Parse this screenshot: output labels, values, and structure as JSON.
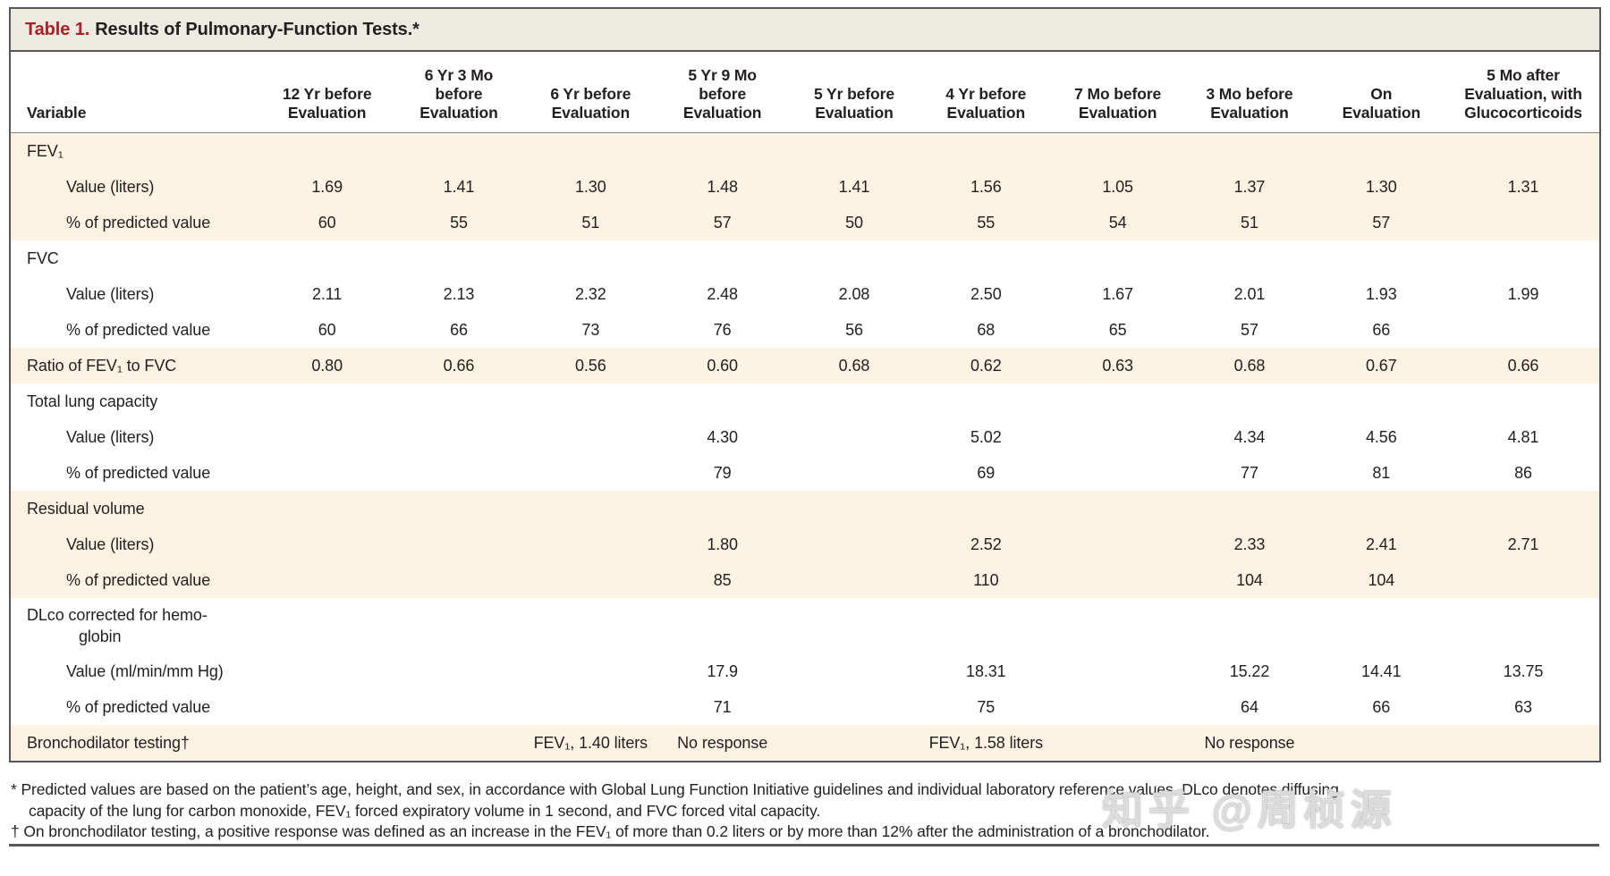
{
  "colors": {
    "title_red": "#b01e23",
    "title_bar_bg": "#edeae2",
    "stripe_cream": "#fcf3e2",
    "border_gray": "#57575b",
    "text": "#231f20"
  },
  "table": {
    "title_label": "Table 1.",
    "title_text": "Results of Pulmonary-Function Tests.*",
    "columns": [
      "Variable",
      "12 Yr before\nEvaluation",
      "6 Yr 3 Mo\nbefore\nEvaluation",
      "6 Yr before\nEvaluation",
      "5 Yr 9 Mo\nbefore\nEvaluation",
      "5 Yr before\nEvaluation",
      "4 Yr before\nEvaluation",
      "7 Mo before\nEvaluation",
      "3 Mo before\nEvaluation",
      "On\nEvaluation",
      "5 Mo after\nEvaluation, with\nGlucocorticoids"
    ],
    "rows": [
      {
        "type": "section",
        "stripe": true,
        "label": "FEV₁",
        "cells": [
          "",
          "",
          "",
          "",
          "",
          "",
          "",
          "",
          "",
          ""
        ]
      },
      {
        "type": "sub",
        "stripe": true,
        "label": "Value (liters)",
        "cells": [
          "1.69",
          "1.41",
          "1.30",
          "1.48",
          "1.41",
          "1.56",
          "1.05",
          "1.37",
          "1.30",
          "1.31"
        ]
      },
      {
        "type": "sub",
        "stripe": true,
        "label": "% of predicted value",
        "cells": [
          "60",
          "55",
          "51",
          "57",
          "50",
          "55",
          "54",
          "51",
          "57",
          ""
        ]
      },
      {
        "type": "section",
        "stripe": false,
        "label": "FVC",
        "cells": [
          "",
          "",
          "",
          "",
          "",
          "",
          "",
          "",
          "",
          ""
        ]
      },
      {
        "type": "sub",
        "stripe": false,
        "label": "Value (liters)",
        "cells": [
          "2.11",
          "2.13",
          "2.32",
          "2.48",
          "2.08",
          "2.50",
          "1.67",
          "2.01",
          "1.93",
          "1.99"
        ]
      },
      {
        "type": "sub",
        "stripe": false,
        "label": "% of predicted value",
        "cells": [
          "60",
          "66",
          "73",
          "76",
          "56",
          "68",
          "65",
          "57",
          "66",
          ""
        ]
      },
      {
        "type": "section-data",
        "stripe": true,
        "label": "Ratio of FEV₁ to FVC",
        "cells": [
          "0.80",
          "0.66",
          "0.56",
          "0.60",
          "0.68",
          "0.62",
          "0.63",
          "0.68",
          "0.67",
          "0.66"
        ]
      },
      {
        "type": "section",
        "stripe": false,
        "label": "Total lung capacity",
        "cells": [
          "",
          "",
          "",
          "",
          "",
          "",
          "",
          "",
          "",
          ""
        ]
      },
      {
        "type": "sub",
        "stripe": false,
        "label": "Value (liters)",
        "cells": [
          "",
          "",
          "",
          "4.30",
          "",
          "5.02",
          "",
          "4.34",
          "4.56",
          "4.81"
        ]
      },
      {
        "type": "sub",
        "stripe": false,
        "label": "% of predicted value",
        "cells": [
          "",
          "",
          "",
          "79",
          "",
          "69",
          "",
          "77",
          "81",
          "86"
        ]
      },
      {
        "type": "section",
        "stripe": true,
        "label": "Residual volume",
        "cells": [
          "",
          "",
          "",
          "",
          "",
          "",
          "",
          "",
          "",
          ""
        ]
      },
      {
        "type": "sub",
        "stripe": true,
        "label": "Value (liters)",
        "cells": [
          "",
          "",
          "",
          "1.80",
          "",
          "2.52",
          "",
          "2.33",
          "2.41",
          "2.71"
        ]
      },
      {
        "type": "sub",
        "stripe": true,
        "label": "% of predicted value",
        "cells": [
          "",
          "",
          "",
          "85",
          "",
          "110",
          "",
          "104",
          "104",
          ""
        ]
      },
      {
        "type": "hang",
        "stripe": false,
        "label": "DLᴄᴏ corrected for hemo-\nglobin",
        "cells": [
          "",
          "",
          "",
          "",
          "",
          "",
          "",
          "",
          "",
          ""
        ]
      },
      {
        "type": "sub",
        "stripe": false,
        "label": "Value (ml/min/mm Hg)",
        "cells": [
          "",
          "",
          "",
          "17.9",
          "",
          "18.31",
          "",
          "15.22",
          "14.41",
          "13.75"
        ]
      },
      {
        "type": "sub",
        "stripe": false,
        "label": "% of predicted value",
        "cells": [
          "",
          "",
          "",
          "71",
          "",
          "75",
          "",
          "64",
          "66",
          "63"
        ]
      },
      {
        "type": "section-data",
        "stripe": true,
        "label": "Bronchodilator testing†",
        "cells": [
          "",
          "",
          "FEV₁, 1.40 liters",
          "No response",
          "",
          "FEV₁, 1.58 liters",
          "",
          "No response",
          "",
          ""
        ]
      }
    ]
  },
  "footnotes": {
    "star": "* Predicted values are based on the patient’s age, height, and sex, in accordance with Global Lung Function Initiative guidelines and individual laboratory reference values. DLᴄᴏ denotes diffusing capacity of the lung for carbon monoxide, FEV₁ forced expiratory volume in 1 second, and FVC forced vital capacity.",
    "dagger": "† On bronchodilator testing, a positive response was defined as an increase in the FEV₁ of more than 0.2 liters or by more than 12% after the administration of a bronchodilator."
  },
  "watermark": "知乎 @周桢源"
}
